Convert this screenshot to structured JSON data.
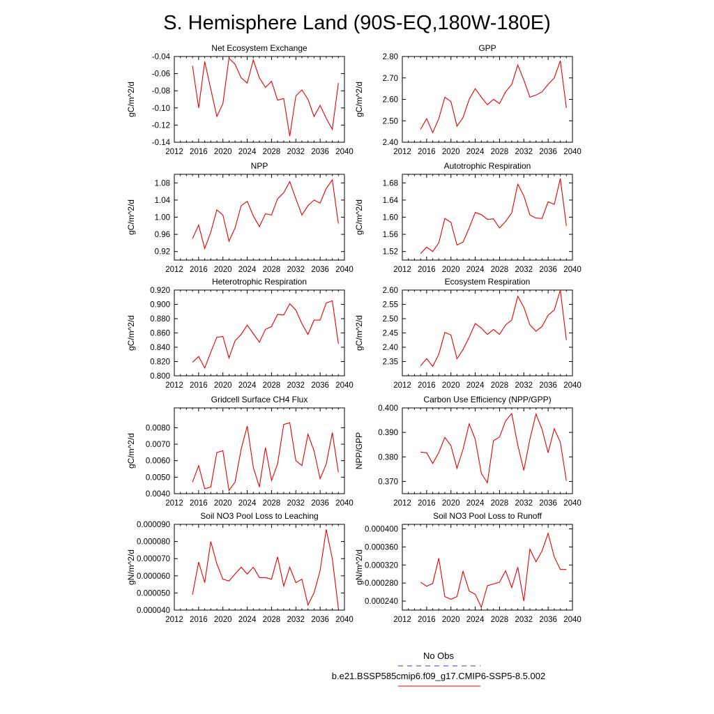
{
  "title": "S. Hemisphere Land (90S-EQ,180W-180E)",
  "legend": {
    "obs_label": "No Obs",
    "model_label": "b.e21.BSSP585cmip6.f09_g17.CMIP6-SSP5-8.5.002",
    "obs_color": "#3a3acc",
    "model_color": "#e60000"
  },
  "chart_data": [
    {
      "type": "line",
      "title": "Net Ecosystem Exchange",
      "ylabel": "gC/m^2/d",
      "xlabel": "",
      "xlim": [
        2012,
        2040
      ],
      "xticks": [
        2012,
        2016,
        2020,
        2024,
        2028,
        2032,
        2036,
        2040
      ],
      "ylim": [
        -0.14,
        -0.04
      ],
      "yticks": [
        "-0.14",
        "-0.12",
        "-0.10",
        "-0.08",
        "-0.06",
        "-0.04"
      ],
      "series": [
        {
          "color": "#e60000",
          "x": [
            2015,
            2016,
            2017,
            2018,
            2019,
            2020,
            2021,
            2022,
            2023,
            2024,
            2025,
            2026,
            2027,
            2028,
            2029,
            2030,
            2031,
            2032,
            2033,
            2034,
            2035,
            2036,
            2037,
            2038,
            2039
          ],
          "values": [
            -0.051,
            -0.1,
            -0.046,
            -0.078,
            -0.11,
            -0.095,
            -0.042,
            -0.049,
            -0.065,
            -0.071,
            -0.044,
            -0.065,
            -0.076,
            -0.069,
            -0.091,
            -0.089,
            -0.133,
            -0.086,
            -0.079,
            -0.09,
            -0.11,
            -0.097,
            -0.112,
            -0.125,
            -0.071
          ]
        }
      ]
    },
    {
      "type": "line",
      "title": "GPP",
      "ylabel": "gC/m^2/d",
      "xlabel": "",
      "xlim": [
        2012,
        2040
      ],
      "xticks": [
        2012,
        2016,
        2020,
        2024,
        2028,
        2032,
        2036,
        2040
      ],
      "ylim": [
        2.4,
        2.8
      ],
      "yticks": [
        "2.40",
        "2.50",
        "2.60",
        "2.70",
        "2.80"
      ],
      "series": [
        {
          "color": "#e60000",
          "x": [
            2015,
            2016,
            2017,
            2018,
            2019,
            2020,
            2021,
            2022,
            2023,
            2024,
            2025,
            2026,
            2027,
            2028,
            2029,
            2030,
            2031,
            2032,
            2033,
            2034,
            2035,
            2036,
            2037,
            2038,
            2039
          ],
          "values": [
            2.46,
            2.51,
            2.445,
            2.51,
            2.61,
            2.59,
            2.475,
            2.515,
            2.6,
            2.65,
            2.61,
            2.575,
            2.6,
            2.58,
            2.635,
            2.67,
            2.76,
            2.69,
            2.61,
            2.62,
            2.635,
            2.67,
            2.7,
            2.78,
            2.56
          ]
        }
      ]
    },
    {
      "type": "line",
      "title": "NPP",
      "ylabel": "gC/m^2/d",
      "xlabel": "",
      "xlim": [
        2012,
        2040
      ],
      "xticks": [
        2012,
        2016,
        2020,
        2024,
        2028,
        2032,
        2036,
        2040
      ],
      "ylim": [
        0.9,
        1.1
      ],
      "yticks": [
        "0.92",
        "0.96",
        "1.00",
        "1.04",
        "1.08"
      ],
      "series": [
        {
          "color": "#e60000",
          "x": [
            2015,
            2016,
            2017,
            2018,
            2019,
            2020,
            2021,
            2022,
            2023,
            2024,
            2025,
            2026,
            2027,
            2028,
            2029,
            2030,
            2031,
            2032,
            2033,
            2034,
            2035,
            2036,
            2037,
            2038,
            2039
          ],
          "values": [
            0.95,
            0.982,
            0.927,
            0.965,
            1.017,
            1.005,
            0.944,
            0.975,
            1.027,
            1.037,
            1.003,
            0.978,
            1.008,
            1.005,
            1.043,
            1.057,
            1.083,
            1.043,
            1.005,
            1.027,
            1.04,
            1.033,
            1.067,
            1.087,
            0.985
          ]
        }
      ]
    },
    {
      "type": "line",
      "title": "Autotrophic Respiration",
      "ylabel": "gC/m^2/d",
      "xlabel": "",
      "xlim": [
        2012,
        2040
      ],
      "xticks": [
        2012,
        2016,
        2020,
        2024,
        2028,
        2032,
        2036,
        2040
      ],
      "ylim": [
        1.5,
        1.7
      ],
      "yticks": [
        "1.52",
        "1.56",
        "1.60",
        "1.64",
        "1.68"
      ],
      "series": [
        {
          "color": "#e60000",
          "x": [
            2015,
            2016,
            2017,
            2018,
            2019,
            2020,
            2021,
            2022,
            2023,
            2024,
            2025,
            2026,
            2027,
            2028,
            2029,
            2030,
            2031,
            2032,
            2033,
            2034,
            2035,
            2036,
            2037,
            2038,
            2039
          ],
          "values": [
            1.515,
            1.53,
            1.52,
            1.54,
            1.597,
            1.588,
            1.535,
            1.542,
            1.575,
            1.611,
            1.606,
            1.595,
            1.596,
            1.575,
            1.59,
            1.61,
            1.677,
            1.65,
            1.605,
            1.598,
            1.597,
            1.636,
            1.63,
            1.69,
            1.58
          ]
        }
      ]
    },
    {
      "type": "line",
      "title": "Heterotrophic Respiration",
      "ylabel": "gC/m^2/d",
      "xlabel": "",
      "xlim": [
        2012,
        2040
      ],
      "xticks": [
        2012,
        2016,
        2020,
        2024,
        2028,
        2032,
        2036,
        2040
      ],
      "ylim": [
        0.8,
        0.92
      ],
      "yticks": [
        "0.800",
        "0.820",
        "0.840",
        "0.860",
        "0.880",
        "0.900",
        "0.920"
      ],
      "series": [
        {
          "color": "#e60000",
          "x": [
            2015,
            2016,
            2017,
            2018,
            2019,
            2020,
            2021,
            2022,
            2023,
            2024,
            2025,
            2026,
            2027,
            2028,
            2029,
            2030,
            2031,
            2032,
            2033,
            2034,
            2035,
            2036,
            2037,
            2038,
            2039
          ],
          "values": [
            0.819,
            0.827,
            0.811,
            0.833,
            0.854,
            0.855,
            0.825,
            0.849,
            0.858,
            0.871,
            0.859,
            0.847,
            0.865,
            0.869,
            0.886,
            0.885,
            0.901,
            0.892,
            0.873,
            0.858,
            0.878,
            0.878,
            0.902,
            0.905,
            0.845
          ]
        }
      ]
    },
    {
      "type": "line",
      "title": "Ecosystem Respiration",
      "ylabel": "gC/m^2/d",
      "xlabel": "",
      "xlim": [
        2012,
        2040
      ],
      "xticks": [
        2012,
        2016,
        2020,
        2024,
        2028,
        2032,
        2036,
        2040
      ],
      "ylim": [
        2.3,
        2.6
      ],
      "yticks": [
        "2.35",
        "2.40",
        "2.45",
        "2.50",
        "2.55",
        "2.60"
      ],
      "series": [
        {
          "color": "#e60000",
          "x": [
            2015,
            2016,
            2017,
            2018,
            2019,
            2020,
            2021,
            2022,
            2023,
            2024,
            2025,
            2026,
            2027,
            2028,
            2029,
            2030,
            2031,
            2032,
            2033,
            2034,
            2035,
            2036,
            2037,
            2038,
            2039
          ],
          "values": [
            2.335,
            2.36,
            2.333,
            2.375,
            2.452,
            2.443,
            2.36,
            2.392,
            2.435,
            2.483,
            2.467,
            2.445,
            2.462,
            2.445,
            2.478,
            2.495,
            2.578,
            2.54,
            2.478,
            2.456,
            2.473,
            2.512,
            2.53,
            2.6,
            2.425
          ]
        }
      ]
    },
    {
      "type": "line",
      "title": "Gridcell Surface CH4 Flux",
      "ylabel": "gC/m^2/d",
      "xlabel": "",
      "xlim": [
        2012,
        2040
      ],
      "xticks": [
        2012,
        2016,
        2020,
        2024,
        2028,
        2032,
        2036,
        2040
      ],
      "ylim": [
        0.004,
        0.0092
      ],
      "yticks": [
        "0.0040",
        "0.0050",
        "0.0060",
        "0.0070",
        "0.0080"
      ],
      "series": [
        {
          "color": "#e60000",
          "x": [
            2015,
            2016,
            2017,
            2018,
            2019,
            2020,
            2021,
            2022,
            2023,
            2024,
            2025,
            2026,
            2027,
            2028,
            2029,
            2030,
            2031,
            2032,
            2033,
            2034,
            2035,
            2036,
            2037,
            2038,
            2039
          ],
          "values": [
            0.0047,
            0.0057,
            0.0043,
            0.0044,
            0.0065,
            0.0066,
            0.0042,
            0.0047,
            0.0067,
            0.0081,
            0.0056,
            0.0044,
            0.0068,
            0.0048,
            0.0058,
            0.0082,
            0.0083,
            0.006,
            0.0057,
            0.0076,
            0.0066,
            0.0049,
            0.0058,
            0.0077,
            0.0053
          ]
        }
      ]
    },
    {
      "type": "line",
      "title": "Carbon Use Efficiency (NPP/GPP)",
      "ylabel": "NPP/GPP",
      "xlabel": "",
      "xlim": [
        2012,
        2040
      ],
      "xticks": [
        2012,
        2016,
        2020,
        2024,
        2028,
        2032,
        2036,
        2040
      ],
      "ylim": [
        0.365,
        0.4
      ],
      "yticks": [
        "0.370",
        "0.380",
        "0.390",
        "0.400"
      ],
      "series": [
        {
          "color": "#e60000",
          "x": [
            2015,
            2016,
            2017,
            2018,
            2019,
            2020,
            2021,
            2022,
            2023,
            2024,
            2025,
            2026,
            2027,
            2028,
            2029,
            2030,
            2031,
            2032,
            2033,
            2034,
            2035,
            2036,
            2037,
            2038,
            2039
          ],
          "values": [
            0.382,
            0.3817,
            0.3773,
            0.3818,
            0.388,
            0.3846,
            0.3754,
            0.3831,
            0.3935,
            0.3872,
            0.3733,
            0.3694,
            0.3866,
            0.3881,
            0.3947,
            0.3977,
            0.3848,
            0.3745,
            0.3873,
            0.3975,
            0.3913,
            0.3817,
            0.3915,
            0.386,
            0.3703
          ]
        }
      ]
    },
    {
      "type": "line",
      "title": "Soil NO3 Pool Loss to Leaching",
      "ylabel": "gN/m^2/d",
      "xlabel": "",
      "xlim": [
        2012,
        2040
      ],
      "xticks": [
        2012,
        2016,
        2020,
        2024,
        2028,
        2032,
        2036,
        2040
      ],
      "ylim": [
        4e-05,
        9e-05
      ],
      "yticks": [
        "0.000040",
        "0.000050",
        "0.000060",
        "0.000070",
        "0.000080",
        "0.000090"
      ],
      "series": [
        {
          "color": "#e60000",
          "x": [
            2015,
            2016,
            2017,
            2018,
            2019,
            2020,
            2021,
            2022,
            2023,
            2024,
            2025,
            2026,
            2027,
            2028,
            2029,
            2030,
            2031,
            2032,
            2033,
            2034,
            2035,
            2036,
            2037,
            2038,
            2039
          ],
          "values": [
            4.9e-05,
            6.8e-05,
            5.6e-05,
            8e-05,
            6.7e-05,
            5.8e-05,
            5.7e-05,
            6.1e-05,
            6.5e-05,
            6.1e-05,
            6.5e-05,
            5.9e-05,
            5.9e-05,
            5.8e-05,
            7.1e-05,
            5.4e-05,
            6.5e-05,
            5.6e-05,
            5.8e-05,
            4.3e-05,
            5e-05,
            6.3e-05,
            8.7e-05,
            7e-05,
            4.1e-05
          ]
        }
      ]
    },
    {
      "type": "line",
      "title": "Soil NO3 Pool Loss to Runoff",
      "ylabel": "gN/m^2/d",
      "xlabel": "",
      "xlim": [
        2012,
        2040
      ],
      "xticks": [
        2012,
        2016,
        2020,
        2024,
        2028,
        2032,
        2036,
        2040
      ],
      "ylim": [
        0.00022,
        0.00041
      ],
      "yticks": [
        "0.000240",
        "0.000280",
        "0.000320",
        "0.000360",
        "0.000400"
      ],
      "series": [
        {
          "color": "#e60000",
          "x": [
            2015,
            2016,
            2017,
            2018,
            2019,
            2020,
            2021,
            2022,
            2023,
            2024,
            2025,
            2026,
            2027,
            2028,
            2029,
            2030,
            2031,
            2032,
            2033,
            2034,
            2035,
            2036,
            2037,
            2038,
            2039
          ],
          "values": [
            0.000282,
            0.000273,
            0.000279,
            0.000335,
            0.00025,
            0.000244,
            0.00025,
            0.000306,
            0.000262,
            0.000255,
            0.000226,
            0.000274,
            0.000278,
            0.000282,
            0.000307,
            0.00027,
            0.000315,
            0.00024,
            0.000355,
            0.000327,
            0.000351,
            0.00039,
            0.000338,
            0.00031,
            0.00031
          ]
        }
      ]
    }
  ]
}
